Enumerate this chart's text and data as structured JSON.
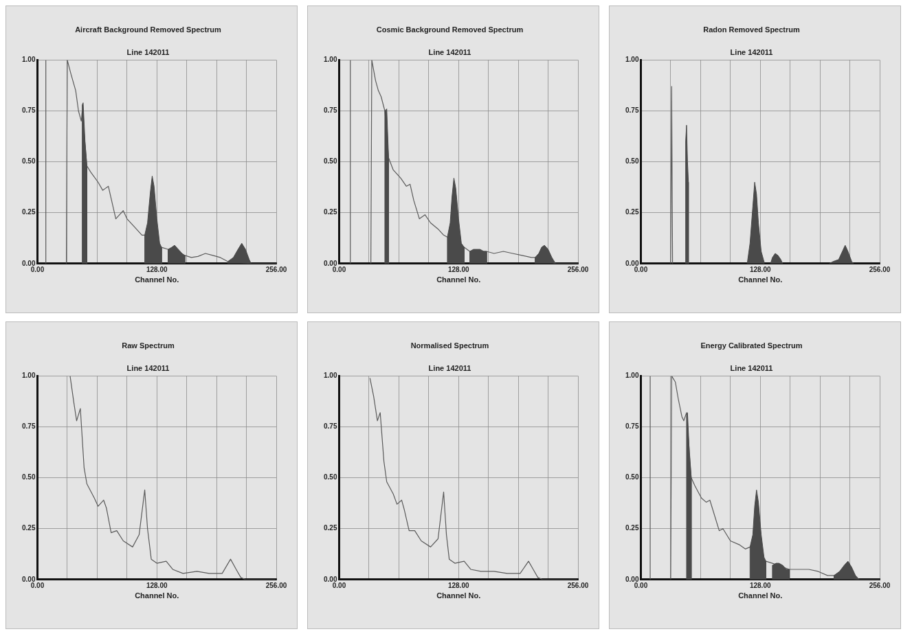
{
  "chart_data": [
    {
      "type": "line",
      "title": "Aircraft Background Removed Spectrum",
      "subtitle": "Line 142011",
      "xlabel": "Channel No.",
      "xlim": [
        0,
        256
      ],
      "xticks": [
        {
          "value": 0,
          "label": "0.00"
        },
        {
          "value": 32,
          "label": null
        },
        {
          "value": 64,
          "label": null
        },
        {
          "value": 96,
          "label": null
        },
        {
          "value": 128,
          "label": "128.00"
        },
        {
          "value": 160,
          "label": null
        },
        {
          "value": 192,
          "label": null
        },
        {
          "value": 224,
          "label": null
        },
        {
          "value": 256,
          "label": "256.00"
        }
      ],
      "ylim": [
        0,
        1
      ],
      "yticks": [
        {
          "value": 0,
          "label": "0.00"
        },
        {
          "value": 0.25,
          "label": "0.25"
        },
        {
          "value": 0.5,
          "label": "0.50"
        },
        {
          "value": 0.75,
          "label": "0.75"
        },
        {
          "value": 1,
          "label": "1.00"
        }
      ],
      "grid": true,
      "series": [
        {
          "type": "area",
          "color": "#4a4a4a",
          "x": [
            48,
            48,
            49,
            51,
            53,
            53
          ],
          "values": [
            0,
            0.78,
            0.79,
            0.6,
            0.48,
            0
          ]
        },
        {
          "type": "area",
          "color": "#4a4a4a",
          "x": [
            115,
            115,
            118,
            121,
            123,
            125,
            128,
            131,
            133,
            133
          ],
          "values": [
            0,
            0.14,
            0.2,
            0.35,
            0.43,
            0.38,
            0.22,
            0.1,
            0.08,
            0
          ]
        },
        {
          "type": "area",
          "color": "#4a4a4a",
          "x": [
            140,
            140,
            144,
            147,
            151,
            155,
            158,
            158
          ],
          "values": [
            0,
            0.07,
            0.08,
            0.09,
            0.07,
            0.05,
            0.04,
            0
          ]
        },
        {
          "type": "area",
          "color": "#4a4a4a",
          "x": [
            204,
            204,
            210,
            215,
            219,
            223,
            227,
            229
          ],
          "values": [
            0,
            0.01,
            0.03,
            0.07,
            0.1,
            0.07,
            0.02,
            0
          ]
        },
        {
          "type": "line",
          "color": "#5a5a5a",
          "x": [
            9,
            9,
            20,
            31,
            32,
            36,
            41,
            44,
            47,
            48,
            53,
            57,
            65,
            70,
            73,
            76,
            80,
            84,
            88,
            92,
            96,
            104,
            112,
            115,
            133,
            140,
            158,
            165,
            172,
            180,
            188,
            196,
            204,
            229,
            256
          ],
          "values": [
            0,
            1,
            null,
            0,
            1,
            0.93,
            0.85,
            0.75,
            0.7,
            0.75,
            0.48,
            0.45,
            0.4,
            0.36,
            0.37,
            0.38,
            0.3,
            0.22,
            0.24,
            0.26,
            0.22,
            0.18,
            0.14,
            0.14,
            0.08,
            0.07,
            0.04,
            0.03,
            0.035,
            0.05,
            0.04,
            0.03,
            0.01,
            0,
            0
          ]
        }
      ]
    },
    {
      "type": "line",
      "title": "Cosmic Background Removed Spectrum",
      "subtitle": "Line 142011",
      "xlabel": "Channel No.",
      "xlim": [
        0,
        256
      ],
      "xticks": [
        {
          "value": 0,
          "label": "0.00"
        },
        {
          "value": 32,
          "label": null
        },
        {
          "value": 64,
          "label": null
        },
        {
          "value": 96,
          "label": null
        },
        {
          "value": 128,
          "label": "128.00"
        },
        {
          "value": 160,
          "label": null
        },
        {
          "value": 192,
          "label": null
        },
        {
          "value": 224,
          "label": null
        },
        {
          "value": 256,
          "label": "256.00"
        }
      ],
      "ylim": [
        0,
        1
      ],
      "yticks": [
        {
          "value": 0,
          "label": "0.00"
        },
        {
          "value": 0.25,
          "label": "0.25"
        },
        {
          "value": 0.5,
          "label": "0.50"
        },
        {
          "value": 0.75,
          "label": "0.75"
        },
        {
          "value": 1,
          "label": "1.00"
        }
      ],
      "grid": true,
      "series": [
        {
          "type": "area",
          "color": "#4a4a4a",
          "x": [
            49,
            49,
            51,
            53,
            53
          ],
          "values": [
            0,
            0.75,
            0.76,
            0.52,
            0
          ]
        },
        {
          "type": "area",
          "color": "#4a4a4a",
          "x": [
            116,
            116,
            119,
            121,
            123,
            125,
            128,
            131,
            134,
            134
          ],
          "values": [
            0,
            0.13,
            0.2,
            0.33,
            0.42,
            0.37,
            0.22,
            0.1,
            0.08,
            0
          ]
        },
        {
          "type": "area",
          "color": "#4a4a4a",
          "x": [
            140,
            140,
            144,
            147,
            151,
            155,
            158,
            158
          ],
          "values": [
            0,
            0.06,
            0.07,
            0.07,
            0.07,
            0.06,
            0.06,
            0
          ]
        },
        {
          "type": "area",
          "color": "#4a4a4a",
          "x": [
            210,
            210,
            214,
            217,
            220,
            224,
            228,
            232
          ],
          "values": [
            0,
            0.03,
            0.05,
            0.08,
            0.09,
            0.07,
            0.03,
            0
          ]
        },
        {
          "type": "line",
          "color": "#5a5a5a",
          "x": [
            12,
            12,
            20,
            34,
            35,
            39,
            42,
            45,
            49,
            53,
            58,
            66,
            72,
            76,
            80,
            86,
            92,
            98,
            106,
            112,
            116,
            134,
            140,
            158,
            166,
            176,
            186,
            196,
            206,
            210,
            232,
            256
          ],
          "values": [
            0,
            1,
            null,
            0,
            1,
            0.9,
            0.85,
            0.82,
            0.75,
            0.52,
            0.46,
            0.42,
            0.38,
            0.39,
            0.31,
            0.22,
            0.24,
            0.2,
            0.17,
            0.14,
            0.13,
            0.08,
            0.06,
            0.06,
            0.05,
            0.06,
            0.05,
            0.04,
            0.03,
            0.03,
            0,
            0
          ]
        }
      ]
    },
    {
      "type": "line",
      "title": "Radon Removed Spectrum",
      "subtitle": "Line 142011",
      "xlabel": "Channel No.",
      "xlim": [
        0,
        256
      ],
      "xticks": [
        {
          "value": 0,
          "label": "0.00"
        },
        {
          "value": 32,
          "label": null
        },
        {
          "value": 64,
          "label": null
        },
        {
          "value": 96,
          "label": null
        },
        {
          "value": 128,
          "label": "128.00"
        },
        {
          "value": 160,
          "label": null
        },
        {
          "value": 192,
          "label": null
        },
        {
          "value": 224,
          "label": null
        },
        {
          "value": 256,
          "label": "256.00"
        }
      ],
      "ylim": [
        0,
        1
      ],
      "yticks": [
        {
          "value": 0,
          "label": "0.00"
        },
        {
          "value": 0.25,
          "label": "0.25"
        },
        {
          "value": 0.5,
          "label": "0.50"
        },
        {
          "value": 0.75,
          "label": "0.75"
        },
        {
          "value": 1,
          "label": "1.00"
        }
      ],
      "grid": true,
      "series": [
        {
          "type": "area",
          "color": "#4a4a4a",
          "x": [
            48,
            48,
            49,
            50,
            51,
            51
          ],
          "values": [
            0,
            0.6,
            0.68,
            0.5,
            0.4,
            0
          ]
        },
        {
          "type": "area",
          "color": "#4a4a4a",
          "x": [
            114,
            117,
            120,
            122,
            124,
            126,
            129,
            132,
            132
          ],
          "values": [
            0,
            0.1,
            0.28,
            0.4,
            0.34,
            0.2,
            0.06,
            0.01,
            0
          ]
        },
        {
          "type": "area",
          "color": "#4a4a4a",
          "x": [
            139,
            141,
            144,
            147,
            150,
            152
          ],
          "values": [
            0,
            0.03,
            0.05,
            0.04,
            0.02,
            0
          ]
        },
        {
          "type": "area",
          "color": "#4a4a4a",
          "x": [
            202,
            206,
            212,
            216,
            219,
            222,
            226,
            228
          ],
          "values": [
            0,
            0.01,
            0.02,
            0.06,
            0.09,
            0.06,
            0.01,
            0
          ]
        },
        {
          "type": "line",
          "color": "#5a5a5a",
          "x": [
            32,
            33,
            34
          ],
          "values": [
            0,
            0.87,
            0
          ]
        }
      ]
    },
    {
      "type": "line",
      "title": "Raw Spectrum",
      "subtitle": "Line 142011",
      "xlabel": "Channel No.",
      "xlim": [
        0,
        256
      ],
      "xticks": [
        {
          "value": 0,
          "label": "0.00"
        },
        {
          "value": 32,
          "label": null
        },
        {
          "value": 64,
          "label": null
        },
        {
          "value": 96,
          "label": null
        },
        {
          "value": 128,
          "label": "128.00"
        },
        {
          "value": 160,
          "label": null
        },
        {
          "value": 192,
          "label": null
        },
        {
          "value": 224,
          "label": null
        },
        {
          "value": 256,
          "label": "256.00"
        }
      ],
      "ylim": [
        0,
        1
      ],
      "yticks": [
        {
          "value": 0,
          "label": "0.00"
        },
        {
          "value": 0.25,
          "label": "0.25"
        },
        {
          "value": 0.5,
          "label": "0.50"
        },
        {
          "value": 0.75,
          "label": "0.75"
        },
        {
          "value": 1,
          "label": "1.00"
        }
      ],
      "grid": true,
      "series": [
        {
          "type": "line",
          "color": "#5a5a5a",
          "x": [
            35,
            39,
            42,
            46,
            50,
            53,
            61,
            65,
            71,
            74,
            79,
            85,
            92,
            102,
            109,
            115,
            118,
            122,
            128,
            138,
            145,
            156,
            171,
            184,
            198,
            207,
            213,
            218,
            223,
            255
          ],
          "values": [
            1,
            0.87,
            0.78,
            0.84,
            0.55,
            0.47,
            0.4,
            0.36,
            0.39,
            0.35,
            0.23,
            0.24,
            0.19,
            0.16,
            0.22,
            0.44,
            0.25,
            0.1,
            0.08,
            0.09,
            0.05,
            0.03,
            0.04,
            0.03,
            0.03,
            0.1,
            0.05,
            0.01,
            0,
            0
          ]
        }
      ]
    },
    {
      "type": "line",
      "title": "Normalised Spectrum",
      "subtitle": "Line 142011",
      "xlabel": "Channel No.",
      "xlim": [
        0,
        256
      ],
      "xticks": [
        {
          "value": 0,
          "label": "0.00"
        },
        {
          "value": 32,
          "label": null
        },
        {
          "value": 64,
          "label": null
        },
        {
          "value": 96,
          "label": null
        },
        {
          "value": 128,
          "label": "128.00"
        },
        {
          "value": 160,
          "label": null
        },
        {
          "value": 192,
          "label": null
        },
        {
          "value": 224,
          "label": null
        },
        {
          "value": 256,
          "label": "256.00"
        }
      ],
      "ylim": [
        0,
        1
      ],
      "yticks": [
        {
          "value": 0,
          "label": "0.00"
        },
        {
          "value": 0.25,
          "label": "0.25"
        },
        {
          "value": 0.5,
          "label": "0.50"
        },
        {
          "value": 0.75,
          "label": "0.75"
        },
        {
          "value": 1,
          "label": "1.00"
        }
      ],
      "grid": true,
      "series": [
        {
          "type": "line",
          "color": "#5a5a5a",
          "x": [
            33,
            37,
            41,
            44,
            48,
            51,
            58,
            62,
            67,
            70,
            75,
            81,
            88,
            98,
            106,
            112,
            115,
            118,
            124,
            134,
            141,
            152,
            166,
            180,
            194,
            203,
            208,
            213,
            218,
            255
          ],
          "values": [
            0.99,
            0.9,
            0.78,
            0.82,
            0.58,
            0.48,
            0.42,
            0.37,
            0.39,
            0.34,
            0.24,
            0.24,
            0.19,
            0.16,
            0.2,
            0.43,
            0.22,
            0.1,
            0.08,
            0.09,
            0.05,
            0.04,
            0.04,
            0.03,
            0.03,
            0.09,
            0.05,
            0.01,
            0,
            0
          ]
        }
      ]
    },
    {
      "type": "line",
      "title": "Energy Calibrated Spectrum",
      "subtitle": "Line 142011",
      "xlabel": "Channel No.",
      "xlim": [
        0,
        256
      ],
      "xticks": [
        {
          "value": 0,
          "label": "0.00"
        },
        {
          "value": 32,
          "label": null
        },
        {
          "value": 64,
          "label": null
        },
        {
          "value": 96,
          "label": null
        },
        {
          "value": 128,
          "label": "128.00"
        },
        {
          "value": 160,
          "label": null
        },
        {
          "value": 192,
          "label": null
        },
        {
          "value": 224,
          "label": null
        },
        {
          "value": 256,
          "label": "256.00"
        }
      ],
      "ylim": [
        0,
        1
      ],
      "yticks": [
        {
          "value": 0,
          "label": "0.00"
        },
        {
          "value": 0.25,
          "label": "0.25"
        },
        {
          "value": 0.5,
          "label": "0.50"
        },
        {
          "value": 0.75,
          "label": "0.75"
        },
        {
          "value": 1,
          "label": "1.00"
        }
      ],
      "grid": true,
      "series": [
        {
          "type": "area",
          "color": "#4a4a4a",
          "x": [
            49,
            49,
            50,
            52,
            54,
            54
          ],
          "values": [
            0,
            0.8,
            0.82,
            0.62,
            0.5,
            0
          ]
        },
        {
          "type": "area",
          "color": "#4a4a4a",
          "x": [
            117,
            117,
            120,
            122,
            124,
            126,
            129,
            132,
            134,
            134
          ],
          "values": [
            0,
            0.16,
            0.22,
            0.36,
            0.44,
            0.38,
            0.22,
            0.11,
            0.09,
            0
          ]
        },
        {
          "type": "area",
          "color": "#4a4a4a",
          "x": [
            141,
            141,
            145,
            148,
            152,
            156,
            159,
            159
          ],
          "values": [
            0,
            0.07,
            0.08,
            0.08,
            0.07,
            0.05,
            0.05,
            0
          ]
        },
        {
          "type": "area",
          "color": "#4a4a4a",
          "x": [
            207,
            207,
            213,
            218,
            222,
            226,
            230,
            234
          ],
          "values": [
            0,
            0.02,
            0.04,
            0.07,
            0.09,
            0.06,
            0.02,
            0
          ]
        },
        {
          "type": "line",
          "color": "#5a5a5a",
          "x": [
            10,
            10,
            20,
            32,
            33,
            37,
            40,
            44,
            46,
            49,
            54,
            58,
            65,
            70,
            74,
            78,
            84,
            88,
            96,
            106,
            112,
            117,
            134,
            141,
            159,
            170,
            180,
            190,
            200,
            207,
            234,
            256
          ],
          "values": [
            0,
            1,
            null,
            0,
            1,
            0.97,
            0.89,
            0.8,
            0.78,
            0.82,
            0.5,
            0.46,
            0.4,
            0.38,
            0.39,
            0.33,
            0.24,
            0.25,
            0.19,
            0.17,
            0.15,
            0.16,
            0.09,
            0.08,
            0.05,
            0.05,
            0.05,
            0.04,
            0.02,
            0.02,
            0,
            0
          ]
        }
      ]
    }
  ]
}
